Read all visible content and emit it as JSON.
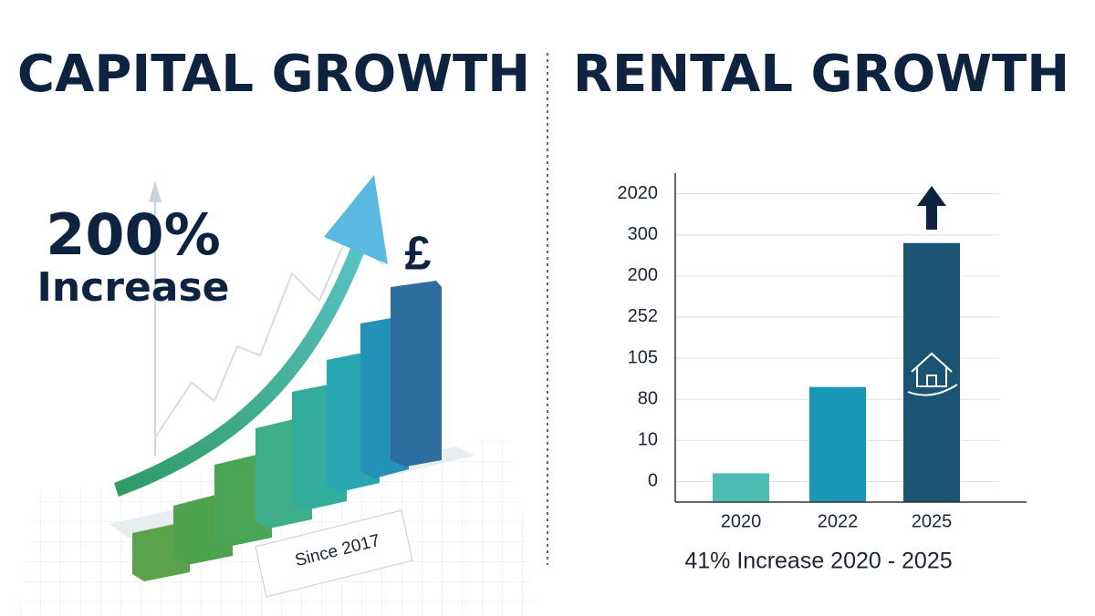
{
  "left_panel": {
    "title": "CAPITAL GROWTH",
    "headline": "200%",
    "subline": "Increase",
    "badge": "Since 2017"
  },
  "chart_data": {
    "type": "bar",
    "title": "RENTAL GROWTH",
    "x_label": "41% Increase 2020 - 2025",
    "categories": [
      "2020",
      "2022",
      "2025"
    ],
    "values": [
      0.2,
      2.3,
      5.8
    ],
    "colors": [
      "#4dbdb1",
      "#1997b6",
      "#1b5373"
    ],
    "ylim": [
      -0.5,
      7.5
    ],
    "yticks": [
      {
        "value": 0,
        "label": "0"
      },
      {
        "value": 1,
        "label": "10"
      },
      {
        "value": 2,
        "label": "80"
      },
      {
        "value": 3,
        "label": "105"
      },
      {
        "value": 4,
        "label": "252"
      },
      {
        "value": 5,
        "label": "200"
      },
      {
        "value": 6,
        "label": "300"
      },
      {
        "value": 7,
        "label": "2020"
      }
    ],
    "grid": true
  }
}
